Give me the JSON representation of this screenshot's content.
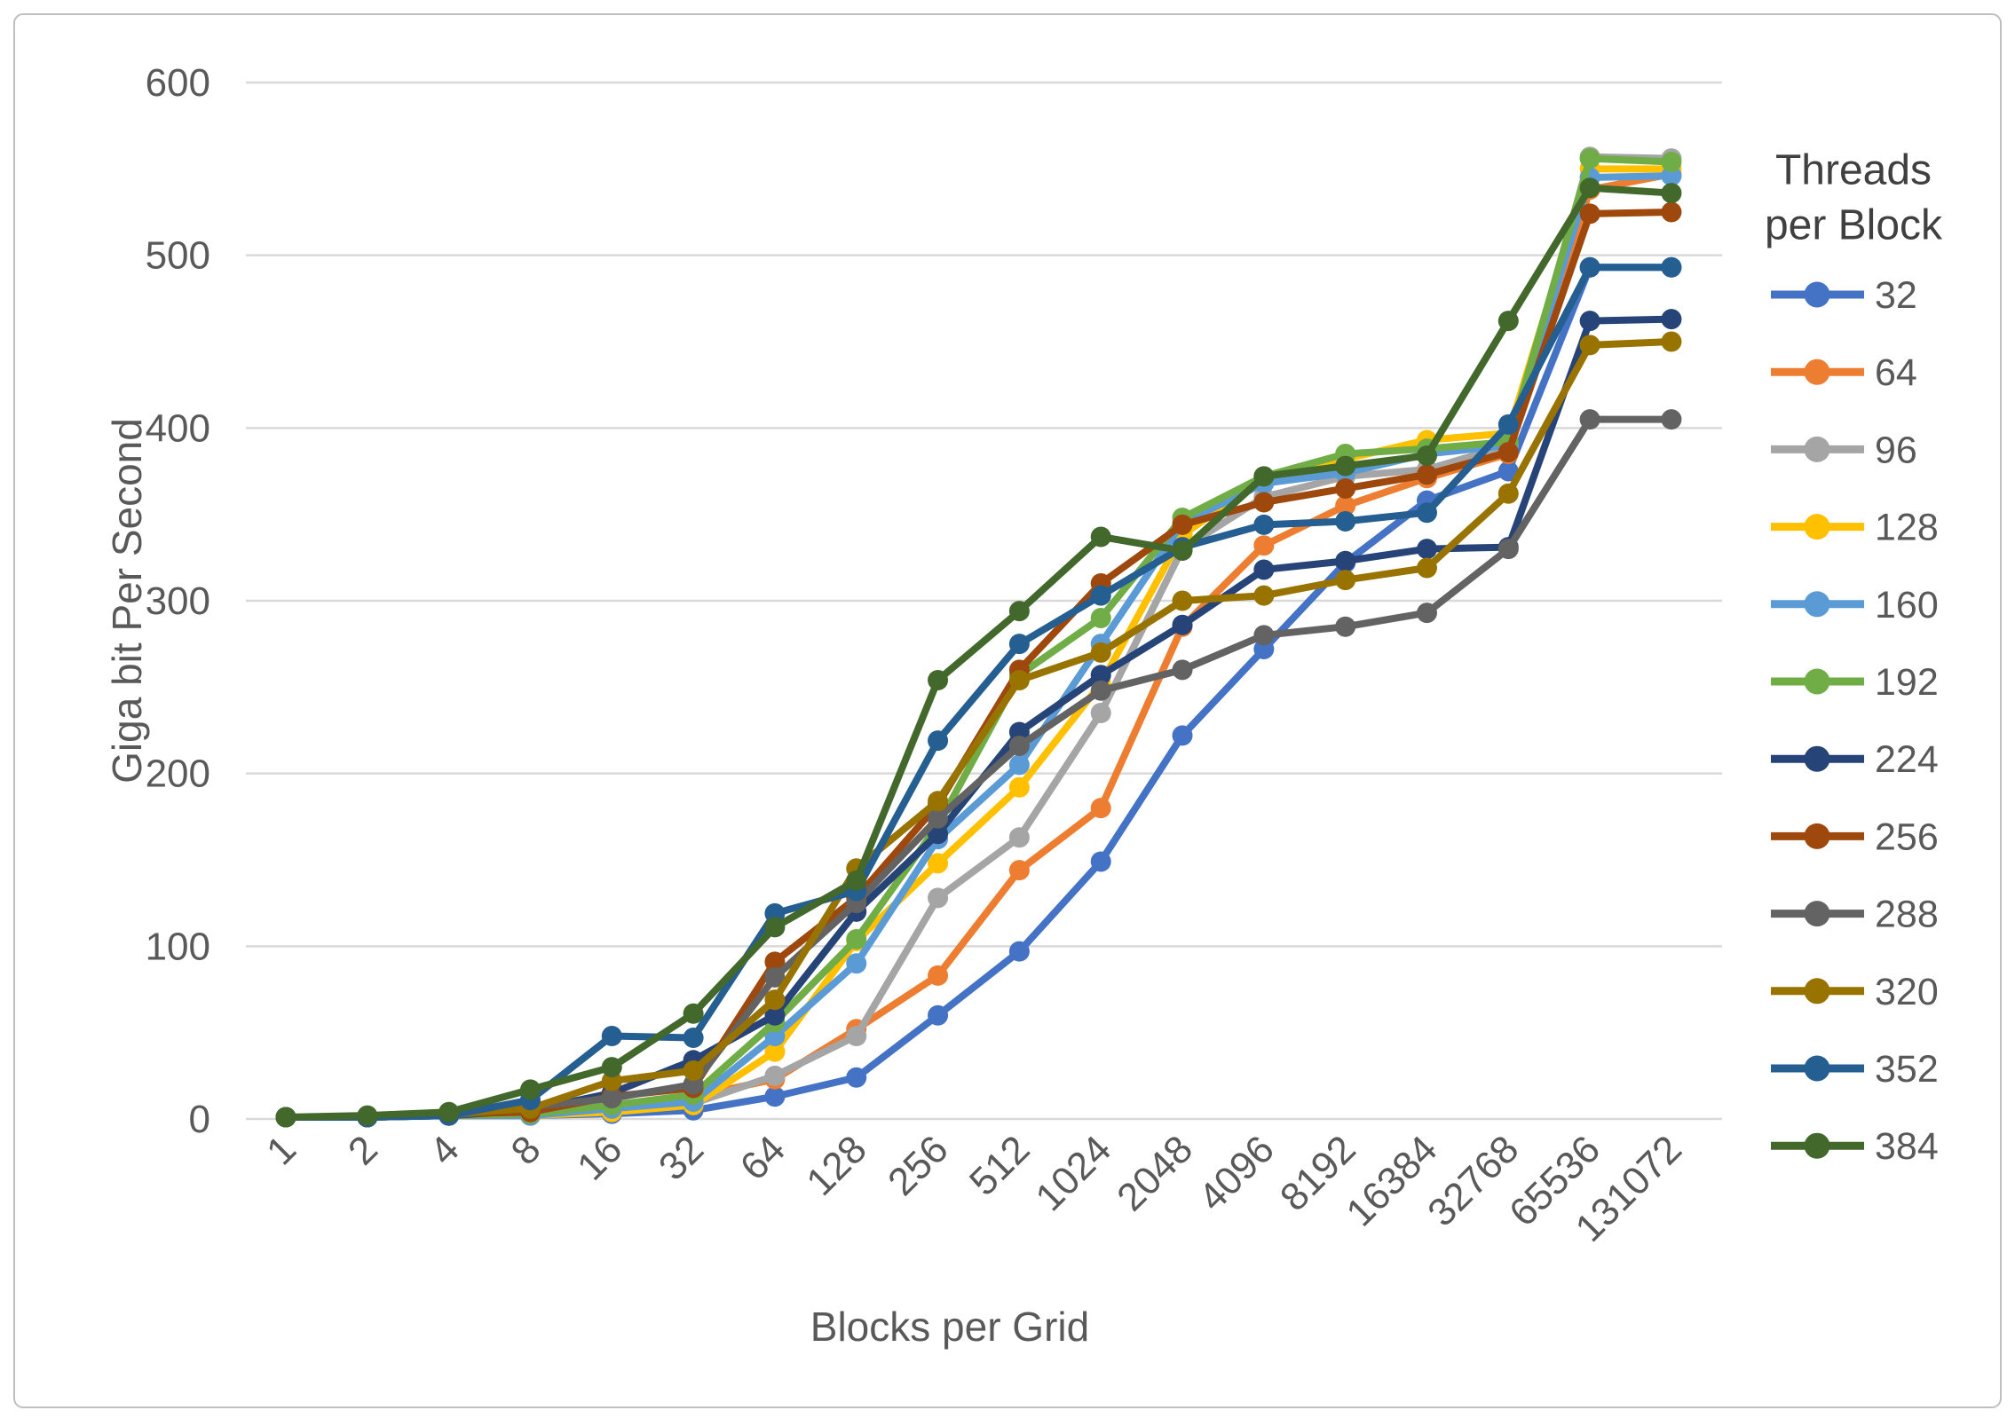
{
  "chart_data": {
    "type": "line",
    "title": "",
    "xlabel": "Blocks per Grid",
    "ylabel": "Giga bit Per Second",
    "legend_title_line1": "Threads",
    "legend_title_line2": "per Block",
    "legend_position": "right",
    "grid": true,
    "ylim": [
      0,
      600
    ],
    "y_ticks": [
      0,
      100,
      200,
      300,
      400,
      500,
      600
    ],
    "categories": [
      "1",
      "2",
      "4",
      "8",
      "16",
      "32",
      "64",
      "128",
      "256",
      "512",
      "1024",
      "2048",
      "4096",
      "8192",
      "16384",
      "32768",
      "65536",
      "131072"
    ],
    "series": [
      {
        "name": "32",
        "color": "#4472C4",
        "values": [
          1,
          1,
          2,
          2,
          3,
          5,
          13,
          24,
          60,
          97,
          149,
          222,
          272,
          322,
          358,
          375,
          493,
          493
        ]
      },
      {
        "name": "64",
        "color": "#ED7D31",
        "values": [
          1,
          1,
          2,
          2,
          7,
          13,
          23,
          52,
          83,
          144,
          180,
          285,
          332,
          355,
          371,
          385,
          538,
          547
        ]
      },
      {
        "name": "96",
        "color": "#A5A5A5",
        "values": [
          1,
          1,
          2,
          2,
          5,
          9,
          25,
          48,
          128,
          163,
          235,
          330,
          360,
          372,
          376,
          390,
          557,
          556
        ]
      },
      {
        "name": "128",
        "color": "#FFC000",
        "values": [
          1,
          1,
          2,
          2,
          4,
          8,
          39,
          103,
          148,
          192,
          252,
          338,
          371,
          382,
          393,
          397,
          550,
          550
        ]
      },
      {
        "name": "160",
        "color": "#5B9BD5",
        "values": [
          1,
          1,
          2,
          2,
          6,
          10,
          48,
          90,
          162,
          205,
          275,
          345,
          368,
          374,
          385,
          390,
          545,
          546
        ]
      },
      {
        "name": "192",
        "color": "#70AD47",
        "values": [
          1,
          1,
          2,
          3,
          8,
          14,
          56,
          104,
          170,
          257,
          290,
          348,
          372,
          385,
          388,
          392,
          556,
          554
        ]
      },
      {
        "name": "224",
        "color": "#264478",
        "values": [
          1,
          1,
          2,
          5,
          15,
          34,
          60,
          120,
          165,
          224,
          257,
          286,
          318,
          323,
          330,
          331,
          462,
          463
        ]
      },
      {
        "name": "256",
        "color": "#9E480E",
        "values": [
          1,
          1,
          3,
          4,
          13,
          18,
          91,
          128,
          182,
          260,
          310,
          344,
          357,
          365,
          373,
          386,
          524,
          525
        ]
      },
      {
        "name": "288",
        "color": "#636363",
        "values": [
          1,
          1,
          2,
          7,
          12,
          20,
          82,
          125,
          174,
          216,
          248,
          260,
          280,
          285,
          293,
          330,
          405,
          405
        ]
      },
      {
        "name": "320",
        "color": "#997300",
        "values": [
          1,
          1,
          3,
          6,
          22,
          28,
          69,
          145,
          184,
          254,
          270,
          300,
          303,
          312,
          319,
          362,
          448,
          450
        ]
      },
      {
        "name": "352",
        "color": "#255E91",
        "values": [
          1,
          1,
          2,
          11,
          48,
          47,
          119,
          132,
          219,
          275,
          303,
          331,
          344,
          346,
          351,
          402,
          493,
          493
        ]
      },
      {
        "name": "384",
        "color": "#43682B",
        "values": [
          1,
          2,
          4,
          17,
          30,
          61,
          111,
          138,
          254,
          294,
          337,
          329,
          372,
          378,
          384,
          462,
          539,
          536
        ]
      }
    ]
  }
}
